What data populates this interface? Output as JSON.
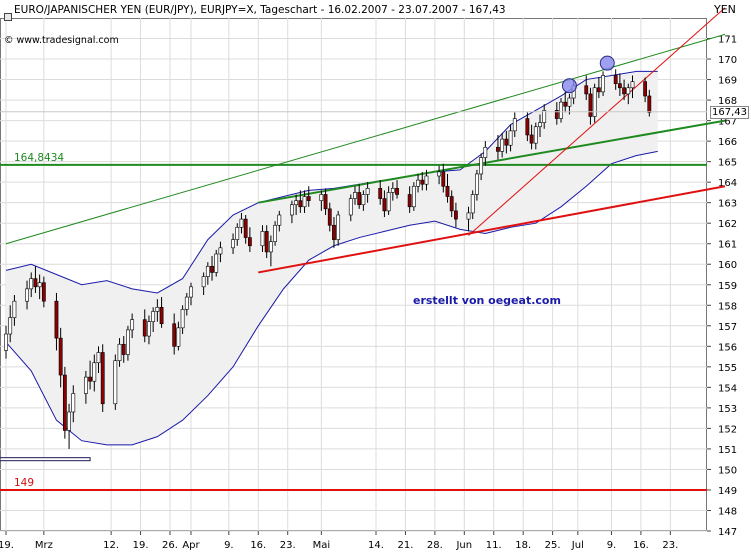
{
  "header": {
    "title": "EURO/JAPANISCHER YEN (EUR/JPY), EURJPY=X, Tageschart - 16.02.2007 - 23.07.2007 - 167,43",
    "brand": "© www.tradesignal.com",
    "credit": "erstellt von oegeat.com",
    "unit": "YEN",
    "last_price_label": "167,43"
  },
  "levels": {
    "green_label": "164,8434",
    "red_label": "149"
  },
  "colors": {
    "candle_up": "#ffffff",
    "candle_down": "#8b0000",
    "bollinger": "#1a1aa8",
    "green_line": "#1f8a1f",
    "red_line": "#e01010",
    "marker": "#8888ee"
  },
  "chart_data": {
    "type": "candlestick",
    "title": "EURO/JAPANISCHER YEN (EUR/JPY), EURJPY=X, Tageschart - 16.02.2007 - 23.07.2007 - 167,43",
    "ylabel": "YEN",
    "ylim": [
      147,
      172
    ],
    "y_ticks": [
      147,
      148,
      149,
      150,
      151,
      152,
      153,
      154,
      155,
      156,
      157,
      158,
      159,
      160,
      161,
      162,
      163,
      164,
      165,
      166,
      167,
      168,
      169,
      170,
      171
    ],
    "x_ticks": [
      "19.",
      "Mrz",
      "12.",
      "19.",
      "26.",
      "Apr",
      "9.",
      "16.",
      "23.",
      "Mai",
      "14.",
      "21.",
      "28.",
      "Jun",
      "11.",
      "18.",
      "25.",
      "Jul",
      "9.",
      "16.",
      "23."
    ],
    "x_tick_days": [
      0,
      9,
      25,
      32,
      39,
      44,
      53,
      60,
      67,
      75,
      88,
      95,
      102,
      109,
      116,
      123,
      130,
      136,
      144,
      151,
      158
    ],
    "candles": [
      [
        0,
        155.8,
        157.0,
        155.4,
        156.6
      ],
      [
        1,
        156.6,
        158.0,
        156.2,
        157.4
      ],
      [
        2,
        157.4,
        158.5,
        157.0,
        158.2
      ],
      [
        5,
        158.2,
        159.2,
        157.8,
        158.8
      ],
      [
        6,
        158.8,
        159.6,
        158.4,
        159.3
      ],
      [
        7,
        159.3,
        159.9,
        158.6,
        158.9
      ],
      [
        8,
        158.9,
        159.5,
        158.3,
        159.1
      ],
      [
        9,
        159.1,
        159.4,
        157.9,
        158.2
      ],
      [
        12,
        158.2,
        158.6,
        155.8,
        156.4
      ],
      [
        13,
        156.4,
        156.9,
        154.0,
        154.6
      ],
      [
        14,
        154.6,
        155.0,
        151.5,
        151.9
      ],
      [
        15,
        151.9,
        153.2,
        151.0,
        152.8
      ],
      [
        16,
        152.8,
        154.1,
        152.3,
        153.7
      ],
      [
        19,
        153.7,
        154.8,
        153.2,
        154.5
      ],
      [
        20,
        154.5,
        155.3,
        153.9,
        154.3
      ],
      [
        21,
        154.3,
        155.6,
        153.8,
        155.2
      ],
      [
        22,
        155.2,
        156.0,
        154.7,
        155.7
      ],
      [
        23,
        155.7,
        156.1,
        152.8,
        153.2
      ],
      [
        26,
        153.2,
        155.6,
        152.9,
        155.3
      ],
      [
        27,
        155.3,
        156.4,
        155.0,
        156.1
      ],
      [
        28,
        156.1,
        156.5,
        155.2,
        155.6
      ],
      [
        29,
        155.6,
        157.0,
        155.3,
        156.8
      ],
      [
        30,
        156.8,
        157.6,
        156.4,
        157.3
      ],
      [
        33,
        157.3,
        157.8,
        156.2,
        156.5
      ],
      [
        34,
        156.5,
        157.5,
        156.1,
        157.2
      ],
      [
        35,
        157.2,
        157.9,
        156.7,
        157.7
      ],
      [
        36,
        157.7,
        158.3,
        157.2,
        157.9
      ],
      [
        37,
        157.9,
        158.4,
        156.9,
        157.1
      ],
      [
        40,
        157.1,
        157.6,
        155.6,
        156.0
      ],
      [
        41,
        156.0,
        157.2,
        155.8,
        156.9
      ],
      [
        42,
        156.9,
        158.0,
        156.6,
        157.8
      ],
      [
        43,
        157.8,
        158.6,
        157.5,
        158.4
      ],
      [
        44,
        158.4,
        159.1,
        158.0,
        158.9
      ],
      [
        47,
        158.9,
        159.6,
        158.5,
        159.4
      ],
      [
        48,
        159.4,
        160.1,
        159.0,
        159.9
      ],
      [
        49,
        159.9,
        160.4,
        159.2,
        159.6
      ],
      [
        50,
        159.6,
        160.7,
        159.4,
        160.5
      ],
      [
        51,
        160.5,
        161.1,
        160.1,
        160.8
      ],
      [
        54,
        160.8,
        161.5,
        160.5,
        161.2
      ],
      [
        55,
        161.2,
        162.0,
        160.9,
        161.8
      ],
      [
        56,
        161.8,
        162.5,
        161.5,
        162.2
      ],
      [
        57,
        162.2,
        162.4,
        161.0,
        161.3
      ],
      [
        58,
        161.3,
        161.8,
        160.6,
        160.9
      ],
      [
        61,
        160.9,
        161.9,
        160.6,
        161.6
      ],
      [
        62,
        161.6,
        161.9,
        160.3,
        160.6
      ],
      [
        63,
        160.6,
        161.4,
        159.9,
        161.1
      ],
      [
        64,
        161.1,
        162.1,
        160.9,
        161.9
      ],
      [
        65,
        161.9,
        162.6,
        161.6,
        162.4
      ],
      [
        68,
        162.4,
        163.1,
        162.0,
        162.9
      ],
      [
        69,
        162.9,
        163.4,
        162.4,
        163.1
      ],
      [
        70,
        163.1,
        163.6,
        162.5,
        162.8
      ],
      [
        71,
        162.8,
        163.6,
        162.5,
        163.3
      ],
      [
        72,
        163.3,
        163.8,
        162.8,
        163.1
      ],
      [
        75,
        163.1,
        163.6,
        162.6,
        163.4
      ],
      [
        76,
        163.4,
        163.7,
        162.4,
        162.7
      ],
      [
        77,
        162.7,
        163.0,
        161.6,
        161.9
      ],
      [
        78,
        161.9,
        162.3,
        160.8,
        161.2
      ],
      [
        79,
        161.2,
        162.6,
        160.9,
        162.4
      ],
      [
        82,
        162.4,
        163.4,
        162.1,
        163.2
      ],
      [
        83,
        163.2,
        163.8,
        162.9,
        163.5
      ],
      [
        84,
        163.5,
        163.9,
        162.7,
        162.9
      ],
      [
        85,
        162.9,
        163.6,
        162.6,
        163.4
      ],
      [
        86,
        163.4,
        164.0,
        163.0,
        163.7
      ],
      [
        89,
        163.7,
        164.1,
        162.9,
        163.2
      ],
      [
        90,
        163.2,
        163.6,
        162.3,
        162.6
      ],
      [
        91,
        162.6,
        163.8,
        162.4,
        163.5
      ],
      [
        92,
        163.5,
        164.0,
        163.1,
        163.7
      ],
      [
        93,
        163.7,
        164.1,
        163.2,
        163.4
      ],
      [
        96,
        163.4,
        163.8,
        162.5,
        162.8
      ],
      [
        97,
        162.8,
        164.0,
        162.6,
        163.8
      ],
      [
        98,
        163.8,
        164.4,
        163.5,
        164.1
      ],
      [
        99,
        164.1,
        164.5,
        163.6,
        163.9
      ],
      [
        100,
        163.9,
        164.6,
        163.6,
        164.3
      ],
      [
        103,
        164.3,
        164.8,
        163.9,
        164.5
      ],
      [
        104,
        164.5,
        164.9,
        163.5,
        163.8
      ],
      [
        105,
        163.8,
        164.4,
        163.0,
        163.3
      ],
      [
        106,
        163.3,
        163.6,
        162.3,
        162.6
      ],
      [
        107,
        162.6,
        163.0,
        161.8,
        162.2
      ],
      [
        110,
        162.2,
        162.8,
        161.6,
        162.5
      ],
      [
        111,
        162.5,
        163.6,
        162.2,
        163.4
      ],
      [
        112,
        163.4,
        164.6,
        163.1,
        164.4
      ],
      [
        113,
        164.4,
        165.4,
        164.1,
        165.2
      ],
      [
        114,
        165.2,
        166.0,
        164.8,
        165.7
      ],
      [
        117,
        165.7,
        166.3,
        165.1,
        165.5
      ],
      [
        118,
        165.5,
        166.4,
        165.2,
        166.1
      ],
      [
        119,
        166.1,
        166.5,
        165.4,
        165.8
      ],
      [
        120,
        165.8,
        166.8,
        165.5,
        166.5
      ],
      [
        121,
        166.5,
        167.4,
        166.2,
        167.1
      ],
      [
        124,
        167.1,
        167.4,
        166.0,
        166.3
      ],
      [
        125,
        166.3,
        166.8,
        165.6,
        165.9
      ],
      [
        126,
        165.9,
        166.9,
        165.6,
        166.7
      ],
      [
        127,
        166.7,
        167.3,
        166.2,
        166.9
      ],
      [
        128,
        166.9,
        167.8,
        166.6,
        167.5
      ],
      [
        131,
        167.5,
        167.9,
        166.8,
        167.1
      ],
      [
        132,
        167.1,
        168.1,
        166.9,
        167.9
      ],
      [
        133,
        167.9,
        168.4,
        167.4,
        167.7
      ],
      [
        134,
        167.7,
        168.3,
        167.3,
        168.1
      ],
      [
        135,
        168.1,
        169.0,
        167.8,
        168.7
      ],
      [
        138,
        168.7,
        169.2,
        168.0,
        168.3
      ],
      [
        139,
        168.3,
        168.6,
        166.8,
        167.2
      ],
      [
        140,
        167.2,
        168.8,
        166.9,
        168.6
      ],
      [
        141,
        168.6,
        169.1,
        168.1,
        168.4
      ],
      [
        142,
        168.4,
        169.4,
        168.2,
        169.2
      ],
      [
        145,
        169.2,
        169.5,
        168.5,
        168.8
      ],
      [
        146,
        168.8,
        169.3,
        168.2,
        168.6
      ],
      [
        147,
        168.6,
        169.0,
        168.0,
        168.3
      ],
      [
        148,
        168.3,
        168.8,
        167.8,
        168.6
      ],
      [
        149,
        168.6,
        169.2,
        168.1,
        168.9
      ],
      [
        152,
        168.9,
        169.1,
        167.9,
        168.2
      ],
      [
        153,
        168.2,
        168.5,
        167.2,
        167.4
      ]
    ],
    "bollinger_upper": [
      [
        0,
        159.7
      ],
      [
        6,
        160.0
      ],
      [
        12,
        159.5
      ],
      [
        18,
        159.0
      ],
      [
        24,
        159.2
      ],
      [
        30,
        158.8
      ],
      [
        36,
        158.6
      ],
      [
        42,
        159.3
      ],
      [
        48,
        161.2
      ],
      [
        54,
        162.4
      ],
      [
        60,
        163.0
      ],
      [
        66,
        163.3
      ],
      [
        72,
        163.6
      ],
      [
        78,
        163.7
      ],
      [
        84,
        163.9
      ],
      [
        90,
        164.1
      ],
      [
        96,
        164.3
      ],
      [
        102,
        164.5
      ],
      [
        108,
        164.6
      ],
      [
        114,
        165.5
      ],
      [
        120,
        166.8
      ],
      [
        126,
        167.5
      ],
      [
        132,
        168.2
      ],
      [
        138,
        169.0
      ],
      [
        144,
        169.2
      ],
      [
        150,
        169.4
      ],
      [
        155,
        169.4
      ]
    ],
    "bollinger_lower": [
      [
        0,
        156.2
      ],
      [
        6,
        154.8
      ],
      [
        12,
        152.4
      ],
      [
        18,
        151.4
      ],
      [
        24,
        151.2
      ],
      [
        30,
        151.2
      ],
      [
        36,
        151.6
      ],
      [
        42,
        152.4
      ],
      [
        48,
        153.6
      ],
      [
        54,
        155.0
      ],
      [
        60,
        157.0
      ],
      [
        66,
        158.8
      ],
      [
        72,
        160.2
      ],
      [
        78,
        160.9
      ],
      [
        84,
        161.3
      ],
      [
        90,
        161.6
      ],
      [
        96,
        161.9
      ],
      [
        102,
        162.1
      ],
      [
        108,
        161.7
      ],
      [
        114,
        161.5
      ],
      [
        120,
        161.8
      ],
      [
        126,
        162.0
      ],
      [
        132,
        162.8
      ],
      [
        138,
        163.8
      ],
      [
        144,
        164.9
      ],
      [
        150,
        165.3
      ],
      [
        155,
        165.5
      ]
    ],
    "horizontal_lines": [
      {
        "value": 164.8434,
        "label": "164,8434"
      },
      {
        "value": 149,
        "label": "149"
      },
      {
        "value": 150.5
      }
    ],
    "trend_lines": [
      {
        "style": "thin-green",
        "from": [
          0,
          161.0
        ],
        "to": [
          171,
          171.2
        ]
      },
      {
        "style": "thick-green",
        "from": [
          60,
          163.0
        ],
        "to": [
          171,
          167.0
        ]
      },
      {
        "style": "thick-red",
        "from": [
          60,
          159.6
        ],
        "to": [
          171,
          163.8
        ]
      },
      {
        "style": "thin-red",
        "from": [
          110,
          161.4
        ],
        "to": [
          171,
          172.5
        ]
      }
    ],
    "markers": [
      [
        134,
        168.7
      ],
      [
        143,
        169.8
      ]
    ],
    "last_price": 167.43
  }
}
